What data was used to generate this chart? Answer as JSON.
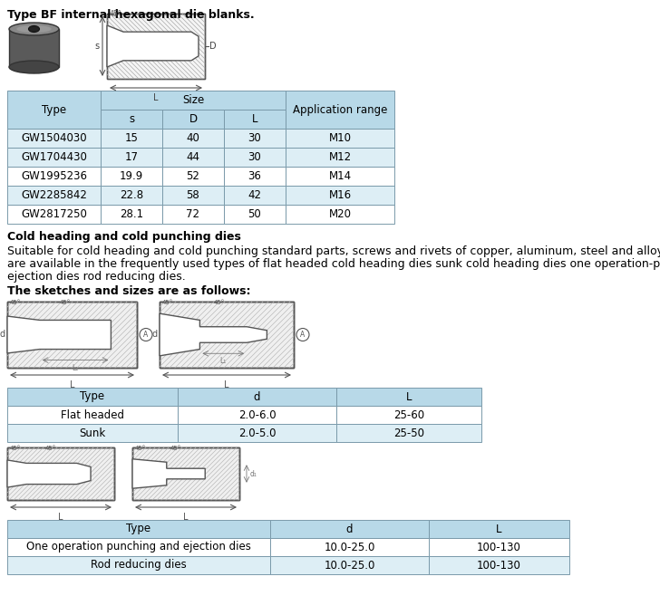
{
  "title_text": "Type BF internal hexagonal die blanks.",
  "table1_rows": [
    [
      "GW1504030",
      "15",
      "40",
      "30",
      "M10"
    ],
    [
      "GW1704430",
      "17",
      "44",
      "30",
      "M12"
    ],
    [
      "GW1995236",
      "19.9",
      "52",
      "36",
      "M14"
    ],
    [
      "GW2285842",
      "22.8",
      "58",
      "42",
      "M16"
    ],
    [
      "GW2817250",
      "28.1",
      "72",
      "50",
      "M20"
    ]
  ],
  "table1_alt_rows": [
    0,
    1,
    3
  ],
  "para1": "Cold heading and cold punching dies",
  "para2": "Suitable for cold heading and cold punching standard parts, screws and rivets of copper, aluminum, steel and alloy steel, they",
  "para3": "are available in the frequently used types of flat headed cold heading dies sunk cold heading dies one operation-punching and",
  "para4": "ejection dies rod reducing dies.",
  "para5": "The sketches and sizes are as follows:",
  "table2_rows": [
    [
      "Flat headed",
      "2.0-6.0",
      "25-60"
    ],
    [
      "Sunk",
      "2.0-5.0",
      "25-50"
    ]
  ],
  "table3_rows": [
    [
      "One operation punching and ejection dies",
      "10.0-25.0",
      "100-130"
    ],
    [
      "Rod reducing dies",
      "10.0-25.0",
      "100-130"
    ]
  ],
  "header_color": "#b8d9e8",
  "alt_row_color": "#ddeef5",
  "white": "#ffffff",
  "border_color": "#7a9aaa",
  "text_color": "#000000"
}
